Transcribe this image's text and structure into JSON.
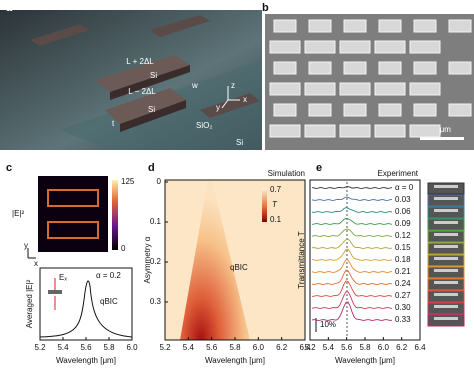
{
  "panel_labels": [
    "a",
    "b",
    "c",
    "d",
    "e"
  ],
  "panel_a": {
    "long_block": "L + 2ΔL",
    "short_block": "L − 2ΔL",
    "block_material_1": "Si",
    "block_material_2": "Si",
    "width": "w",
    "thickness": "t",
    "oxide": "SiO₂",
    "substrate": "Si",
    "axes": [
      "z",
      "y",
      "x"
    ]
  },
  "panel_b": {
    "scale_bar": "5 μm"
  },
  "panel_c": {
    "field_label": "|E|²",
    "colorbar_ticks": [
      "125",
      "0"
    ],
    "map_axes": [
      "y",
      "x"
    ],
    "polarization": "Eₓ",
    "asymmetry": "α = 0.2",
    "mode": "qBIC",
    "y_label": "Averaged |E|²",
    "x_label": "Wavelength [μm]",
    "x_ticks": [
      "5.2",
      "5.4",
      "5.6",
      "5.8",
      "6.0"
    ]
  },
  "panel_d": {
    "title": "Simulation",
    "y_label": "Asymmetry α",
    "y_ticks": [
      "0",
      "0.1",
      "0.2",
      "0.3"
    ],
    "x_label": "Wavelength [μm]",
    "x_ticks": [
      "5.2",
      "5.4",
      "5.6",
      "5.8",
      "6.0",
      "6.2",
      "6.4"
    ],
    "colorbar_label": "T",
    "colorbar_ticks": [
      "0.7",
      "0.1"
    ],
    "mode": "qBIC"
  },
  "panel_e": {
    "title": "Experiment",
    "y_label": "Transmittance T",
    "scale": "10%",
    "alpha_labels": [
      "α = 0",
      "0.03",
      "0.06",
      "0.09",
      "0.12",
      "0.15",
      "0.18",
      "0.21",
      "0.24",
      "0.27",
      "0.30",
      "0.33"
    ],
    "x_label": "Wavelength [μm]",
    "x_ticks": [
      "5.2",
      "5.4",
      "5.6",
      "5.8",
      "6.0",
      "6.2",
      "6.4"
    ]
  }
}
